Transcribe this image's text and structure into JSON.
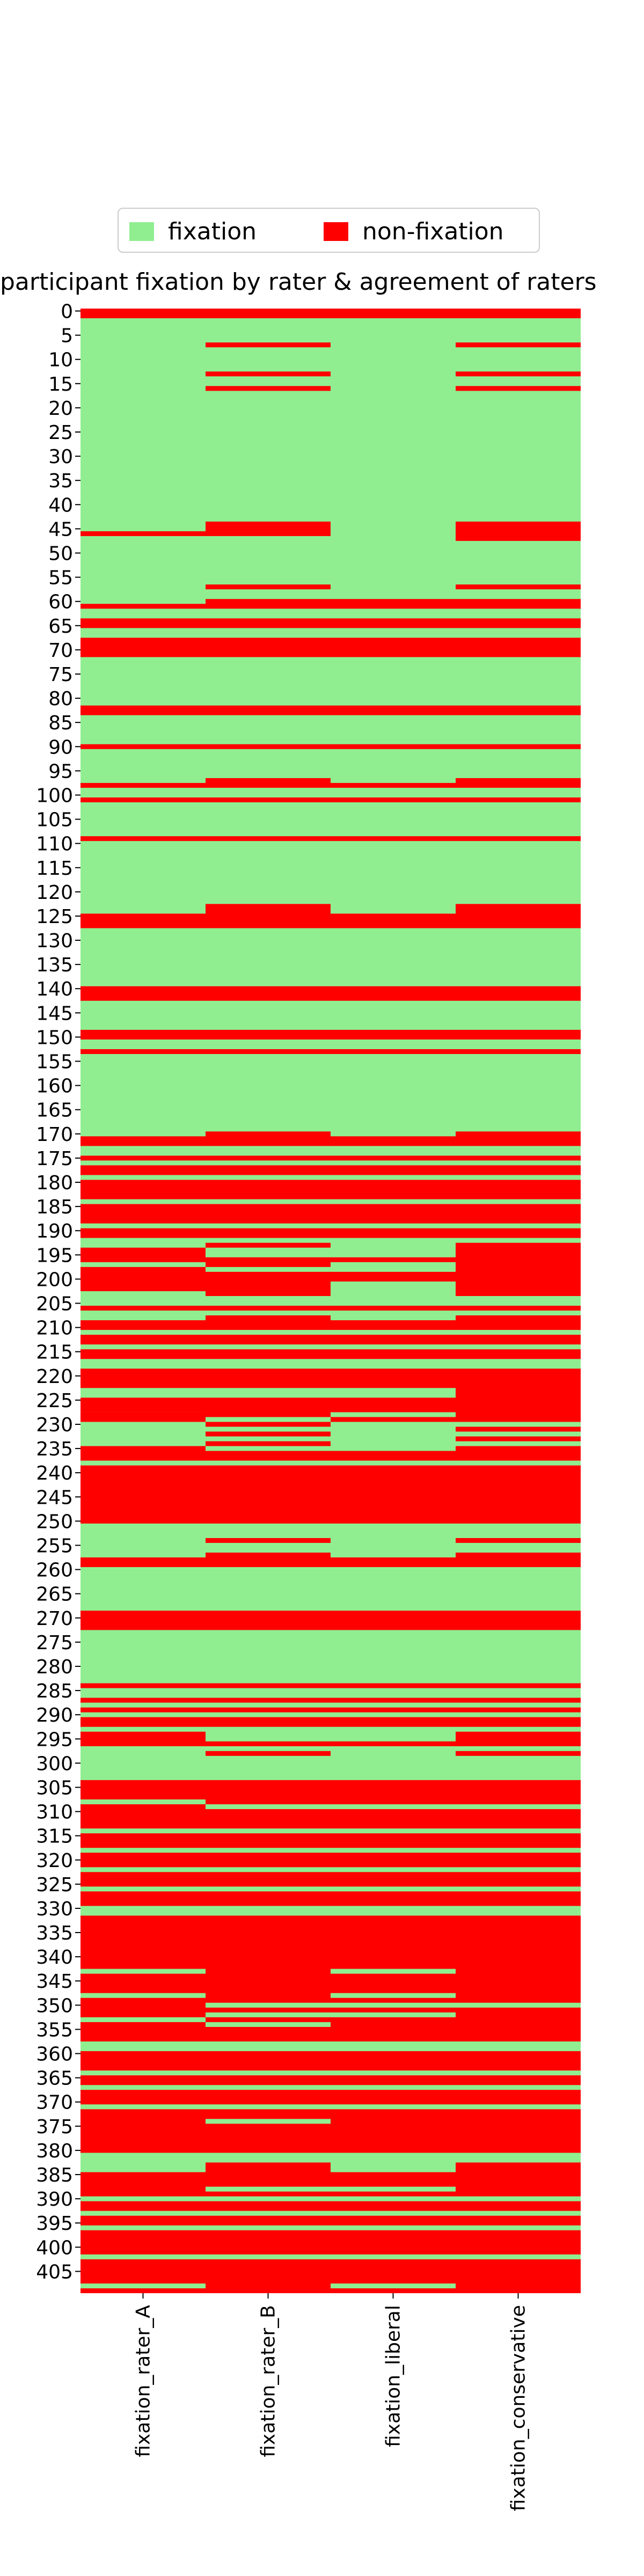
{
  "chart_data": {
    "type": "heatmap",
    "title": "participant fixation by rater & agreement of raters",
    "columns": [
      "fixation_rater_A",
      "fixation_rater_B",
      "fixation_liberal",
      "fixation_conservative"
    ],
    "row_count": 410,
    "y_tick_labels": [
      "0",
      "5",
      "10",
      "15",
      "20",
      "25",
      "30",
      "35",
      "40",
      "45",
      "50",
      "55",
      "60",
      "65",
      "70",
      "75",
      "80",
      "85",
      "90",
      "95",
      "100",
      "105",
      "110",
      "115",
      "120",
      "125",
      "130",
      "135",
      "140",
      "145",
      "150",
      "155",
      "160",
      "165",
      "170",
      "175",
      "180",
      "185",
      "190",
      "195",
      "200",
      "205",
      "210",
      "215",
      "220",
      "225",
      "230",
      "235",
      "240",
      "245",
      "250",
      "255",
      "260",
      "265",
      "270",
      "275",
      "280",
      "285",
      "290",
      "295",
      "300",
      "305",
      "310",
      "315",
      "320",
      "325",
      "330",
      "335",
      "340",
      "345",
      "350",
      "355",
      "360",
      "365",
      "370",
      "375",
      "380",
      "385",
      "390",
      "395",
      "400",
      "405"
    ],
    "categories": [
      "fixation",
      "non-fixation"
    ],
    "colors": {
      "fixation": "#90EE90",
      "non-fixation": "#FF0000"
    },
    "legend": {
      "placement": "top-center",
      "entries": [
        "fixation",
        "non-fixation"
      ]
    },
    "non_fixation_rows": {
      "fixation_rater_A": [
        [
          0,
          1
        ],
        [
          46,
          46
        ],
        [
          61,
          61
        ],
        [
          64,
          65
        ],
        [
          68,
          71
        ],
        [
          82,
          83
        ],
        [
          90,
          90
        ],
        [
          98,
          98
        ],
        [
          101,
          101
        ],
        [
          109,
          109
        ],
        [
          125,
          127
        ],
        [
          140,
          142
        ],
        [
          149,
          150
        ],
        [
          153,
          153
        ],
        [
          171,
          172
        ],
        [
          175,
          175
        ],
        [
          177,
          178
        ],
        [
          180,
          183
        ],
        [
          185,
          188
        ],
        [
          190,
          191
        ],
        [
          194,
          196
        ],
        [
          198,
          202
        ],
        [
          206,
          206
        ],
        [
          209,
          210
        ],
        [
          212,
          213
        ],
        [
          215,
          216
        ],
        [
          219,
          222
        ],
        [
          225,
          227
        ],
        [
          228,
          229
        ],
        [
          235,
          237
        ],
        [
          239,
          250
        ],
        [
          258,
          259
        ],
        [
          269,
          272
        ],
        [
          284,
          284
        ],
        [
          287,
          287
        ],
        [
          289,
          289
        ],
        [
          291,
          292
        ],
        [
          294,
          296
        ],
        [
          304,
          307
        ],
        [
          309,
          313
        ],
        [
          315,
          317
        ],
        [
          319,
          321
        ],
        [
          323,
          325
        ],
        [
          327,
          329
        ],
        [
          332,
          342
        ],
        [
          344,
          347
        ],
        [
          349,
          352
        ],
        [
          354,
          357
        ],
        [
          360,
          363
        ],
        [
          365,
          366
        ],
        [
          368,
          370
        ],
        [
          372,
          380
        ],
        [
          385,
          389
        ],
        [
          391,
          392
        ],
        [
          394,
          395
        ],
        [
          397,
          401
        ],
        [
          403,
          407
        ],
        [
          409,
          409
        ]
      ],
      "fixation_rater_B": [
        [
          0,
          1
        ],
        [
          7,
          7
        ],
        [
          13,
          13
        ],
        [
          16,
          16
        ],
        [
          44,
          46
        ],
        [
          57,
          57
        ],
        [
          60,
          61
        ],
        [
          64,
          65
        ],
        [
          68,
          71
        ],
        [
          82,
          83
        ],
        [
          90,
          90
        ],
        [
          97,
          98
        ],
        [
          101,
          101
        ],
        [
          109,
          109
        ],
        [
          123,
          127
        ],
        [
          140,
          142
        ],
        [
          149,
          150
        ],
        [
          153,
          153
        ],
        [
          170,
          172
        ],
        [
          175,
          175
        ],
        [
          177,
          178
        ],
        [
          180,
          183
        ],
        [
          185,
          188
        ],
        [
          190,
          191
        ],
        [
          193,
          193
        ],
        [
          196,
          197
        ],
        [
          199,
          203
        ],
        [
          206,
          206
        ],
        [
          208,
          210
        ],
        [
          212,
          213
        ],
        [
          215,
          216
        ],
        [
          219,
          222
        ],
        [
          225,
          228
        ],
        [
          230,
          230
        ],
        [
          232,
          232
        ],
        [
          234,
          234
        ],
        [
          236,
          237
        ],
        [
          239,
          250
        ],
        [
          254,
          254
        ],
        [
          257,
          259
        ],
        [
          269,
          272
        ],
        [
          284,
          284
        ],
        [
          287,
          287
        ],
        [
          289,
          289
        ],
        [
          291,
          292
        ],
        [
          296,
          296
        ],
        [
          298,
          298
        ],
        [
          304,
          308
        ],
        [
          310,
          313
        ],
        [
          315,
          317
        ],
        [
          319,
          321
        ],
        [
          323,
          325
        ],
        [
          327,
          329
        ],
        [
          332,
          349
        ],
        [
          351,
          351
        ],
        [
          353,
          353
        ],
        [
          355,
          357
        ],
        [
          360,
          363
        ],
        [
          365,
          366
        ],
        [
          368,
          370
        ],
        [
          372,
          373
        ],
        [
          375,
          380
        ],
        [
          383,
          387
        ],
        [
          389,
          389
        ],
        [
          391,
          392
        ],
        [
          394,
          395
        ],
        [
          397,
          401
        ],
        [
          403,
          409
        ]
      ],
      "fixation_rater_liberal": [],
      "fixation_liberal": [
        [
          0,
          1
        ],
        [
          60,
          61
        ],
        [
          64,
          65
        ],
        [
          68,
          71
        ],
        [
          82,
          83
        ],
        [
          90,
          90
        ],
        [
          98,
          98
        ],
        [
          101,
          101
        ],
        [
          109,
          109
        ],
        [
          125,
          127
        ],
        [
          140,
          142
        ],
        [
          149,
          150
        ],
        [
          153,
          153
        ],
        [
          171,
          172
        ],
        [
          175,
          175
        ],
        [
          177,
          178
        ],
        [
          180,
          183
        ],
        [
          185,
          188
        ],
        [
          190,
          191
        ],
        [
          196,
          196
        ],
        [
          199,
          200
        ],
        [
          206,
          206
        ],
        [
          209,
          210
        ],
        [
          212,
          213
        ],
        [
          215,
          216
        ],
        [
          219,
          222
        ],
        [
          225,
          227
        ],
        [
          229,
          229
        ],
        [
          236,
          237
        ],
        [
          239,
          250
        ],
        [
          258,
          259
        ],
        [
          269,
          272
        ],
        [
          284,
          284
        ],
        [
          287,
          287
        ],
        [
          289,
          289
        ],
        [
          291,
          292
        ],
        [
          296,
          296
        ],
        [
          304,
          308
        ],
        [
          310,
          313
        ],
        [
          315,
          317
        ],
        [
          319,
          321
        ],
        [
          323,
          325
        ],
        [
          327,
          329
        ],
        [
          332,
          342
        ],
        [
          344,
          347
        ],
        [
          349,
          349
        ],
        [
          351,
          351
        ],
        [
          353,
          357
        ],
        [
          360,
          363
        ],
        [
          365,
          366
        ],
        [
          368,
          370
        ],
        [
          372,
          380
        ],
        [
          385,
          387
        ],
        [
          389,
          389
        ],
        [
          391,
          392
        ],
        [
          394,
          395
        ],
        [
          397,
          401
        ],
        [
          403,
          407
        ],
        [
          409,
          409
        ]
      ],
      "fixation_conservative": [
        [
          0,
          1
        ],
        [
          7,
          7
        ],
        [
          13,
          13
        ],
        [
          16,
          16
        ],
        [
          44,
          47
        ],
        [
          57,
          57
        ],
        [
          60,
          61
        ],
        [
          64,
          65
        ],
        [
          68,
          71
        ],
        [
          82,
          83
        ],
        [
          90,
          90
        ],
        [
          97,
          98
        ],
        [
          101,
          101
        ],
        [
          109,
          109
        ],
        [
          123,
          127
        ],
        [
          140,
          142
        ],
        [
          149,
          150
        ],
        [
          153,
          153
        ],
        [
          170,
          172
        ],
        [
          175,
          175
        ],
        [
          177,
          178
        ],
        [
          180,
          183
        ],
        [
          185,
          188
        ],
        [
          190,
          191
        ],
        [
          193,
          203
        ],
        [
          206,
          206
        ],
        [
          208,
          210
        ],
        [
          212,
          213
        ],
        [
          215,
          216
        ],
        [
          219,
          229
        ],
        [
          231,
          231
        ],
        [
          233,
          233
        ],
        [
          235,
          237
        ],
        [
          239,
          250
        ],
        [
          254,
          254
        ],
        [
          257,
          259
        ],
        [
          269,
          272
        ],
        [
          284,
          284
        ],
        [
          287,
          287
        ],
        [
          289,
          289
        ],
        [
          291,
          292
        ],
        [
          294,
          296
        ],
        [
          298,
          298
        ],
        [
          304,
          308
        ],
        [
          310,
          313
        ],
        [
          315,
          317
        ],
        [
          319,
          321
        ],
        [
          323,
          325
        ],
        [
          327,
          329
        ],
        [
          332,
          349
        ],
        [
          351,
          357
        ],
        [
          360,
          363
        ],
        [
          365,
          366
        ],
        [
          368,
          370
        ],
        [
          372,
          380
        ],
        [
          383,
          389
        ],
        [
          391,
          392
        ],
        [
          394,
          395
        ],
        [
          397,
          401
        ],
        [
          403,
          409
        ]
      ]
    },
    "grid": false,
    "xlabel": "",
    "ylabel": ""
  }
}
